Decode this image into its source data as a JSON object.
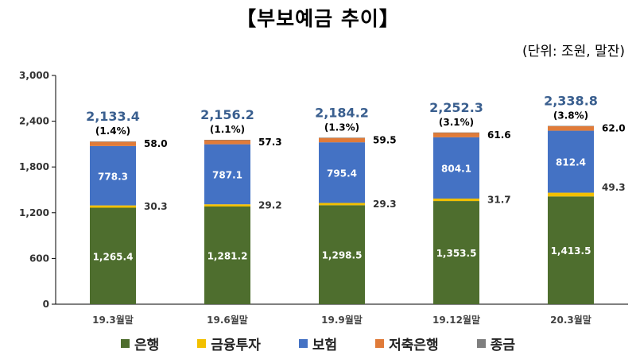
{
  "title": "【부보예금 추이】",
  "unit_note": "(단위: 조원, 말잔)",
  "chart_data": {
    "type": "bar",
    "stacked": true,
    "categories": [
      "19.3월말",
      "19.6월말",
      "19.9월말",
      "19.12월말",
      "20.3월말"
    ],
    "ylim": [
      0,
      3000
    ],
    "yticks": [
      "0",
      "600",
      "1,200",
      "1,800",
      "2,400",
      "3,000"
    ],
    "ytick_values": [
      0,
      600,
      1200,
      1800,
      2400,
      3000
    ],
    "series": [
      {
        "name": "은행",
        "color": "#4e6e2e",
        "values": [
          1265.4,
          1281.2,
          1298.5,
          1353.5,
          1413.5
        ],
        "labels": [
          "1,265.4",
          "1,281.2",
          "1,298.5",
          "1,353.5",
          "1,413.5"
        ]
      },
      {
        "name": "금융투자",
        "color": "#f2c000",
        "values": [
          30.3,
          29.2,
          29.3,
          31.7,
          49.3
        ],
        "labels": [
          "30.3",
          "29.2",
          "29.3",
          "31.7",
          "49.3"
        ]
      },
      {
        "name": "보험",
        "color": "#4472c4",
        "values": [
          778.3,
          787.1,
          795.4,
          804.1,
          812.4
        ],
        "labels": [
          "778.3",
          "787.1",
          "795.4",
          "804.1",
          "812.4"
        ]
      },
      {
        "name": "저축은행",
        "color": "#e07b39",
        "values": [
          58.0,
          57.3,
          59.5,
          61.6,
          62.0
        ],
        "labels": [
          "58.0",
          "57.3",
          "59.5",
          "61.6",
          "62.0"
        ]
      },
      {
        "name": "종금",
        "color": "#7f7f7f",
        "values": [
          1.4,
          1.4,
          1.5,
          1.4,
          1.6
        ],
        "labels": []
      }
    ],
    "totals": [
      "2,133.4",
      "2,156.2",
      "2,184.2",
      "2,252.3",
      "2,338.8"
    ],
    "growth": [
      "(1.4%)",
      "(1.1%)",
      "(1.3%)",
      "(3.1%)",
      "(3.8%)"
    ],
    "legend_position": "bottom",
    "grid": false
  }
}
